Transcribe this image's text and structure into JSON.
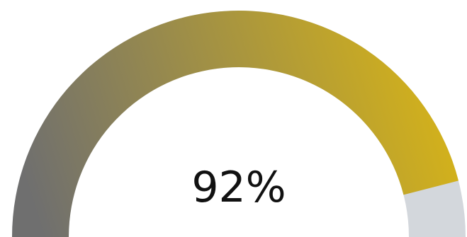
{
  "chart_data": {
    "type": "gauge",
    "value": 92,
    "min": 0,
    "max": 100,
    "value_label": "92%",
    "colors": {
      "fill_start": "#6f6f6f",
      "fill_end": "#d4b21a",
      "track": "#d3d7dc",
      "text": "#111111"
    }
  }
}
